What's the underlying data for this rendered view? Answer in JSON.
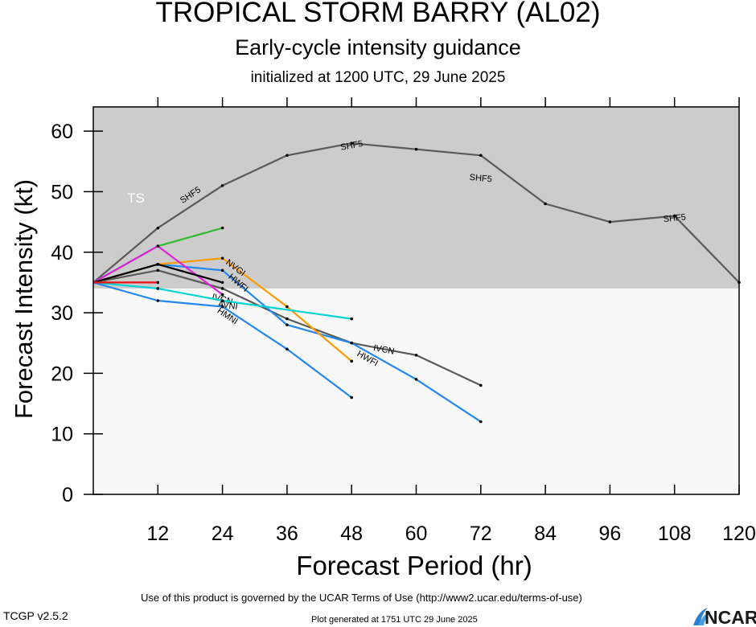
{
  "header": {
    "title": "TROPICAL STORM BARRY (AL02)",
    "subtitle": "Early-cycle intensity guidance",
    "initialized": "initialized at 1200 UTC, 29 June 2025"
  },
  "footer": {
    "terms": "Use of this product is governed by the UCAR Terms of Use (http://www2.ucar.edu/terms-of-use)",
    "version": "TCGP v2.5.2",
    "generated": "Plot generated at 1751 UTC   29 June 2025",
    "logo": "NCAR"
  },
  "chart_data": {
    "type": "line",
    "title": "TROPICAL STORM BARRY (AL02)",
    "xlabel": "Forecast Period (hr)",
    "ylabel": "Forecast Intensity (kt)",
    "xlim": [
      0,
      120
    ],
    "ylim": [
      0,
      64
    ],
    "xticks": [
      12,
      24,
      36,
      48,
      60,
      72,
      84,
      96,
      108,
      120
    ],
    "yticks": [
      0,
      10,
      20,
      30,
      40,
      50,
      60
    ],
    "bands": [
      {
        "label": "TS",
        "from": 34,
        "to": 64,
        "color": "#cccccc"
      },
      {
        "label": "",
        "from": 0,
        "to": 34,
        "color": "#f8f8f8"
      }
    ],
    "series": [
      {
        "name": "SHF5",
        "color": "#5a5a5a",
        "labels_at": [
          [
            18,
            49.5
          ],
          [
            48,
            57.7
          ],
          [
            72,
            52.3
          ],
          [
            108,
            45.7
          ]
        ],
        "x": [
          0,
          12,
          24,
          36,
          48,
          60,
          72,
          84,
          96,
          108,
          120
        ],
        "y": [
          35,
          44,
          51,
          56,
          58,
          57,
          56,
          48,
          45,
          46,
          35
        ]
      },
      {
        "name": "IVCN",
        "color": "#5a5a5a",
        "labels_at": [
          [
            24,
            32.3
          ],
          [
            54,
            24
          ]
        ],
        "x": [
          0,
          12,
          24,
          36,
          48,
          60,
          72
        ],
        "y": [
          35,
          37,
          34,
          29,
          25,
          23,
          18
        ]
      },
      {
        "name": "HWFI",
        "color": "#2288ee",
        "labels_at": [
          [
            27,
            35
          ],
          [
            51,
            22.5
          ]
        ],
        "x": [
          0,
          12,
          24,
          36,
          48,
          60,
          72
        ],
        "y": [
          35,
          38,
          37,
          28,
          25,
          19,
          12
        ]
      },
      {
        "name": "NVGI",
        "color": "#ff9900",
        "labels_at": [
          [
            26.5,
            37.5
          ]
        ],
        "x": [
          0,
          12,
          24,
          36,
          48
        ],
        "y": [
          35,
          38,
          39,
          31,
          22
        ]
      },
      {
        "name": "AVNI",
        "color": "#00d4d4",
        "labels_at": [
          [
            25,
            31.3
          ]
        ],
        "x": [
          0,
          12,
          24,
          48
        ],
        "y": [
          35,
          34,
          32,
          29
        ]
      },
      {
        "name": "HMNI",
        "color": "#2288ee",
        "labels_at": [
          [
            25,
            29.5
          ]
        ],
        "x": [
          0,
          12,
          24,
          36,
          48
        ],
        "y": [
          35,
          32,
          31,
          24,
          16
        ]
      },
      {
        "name": "",
        "color": "#33bb33",
        "x": [
          0,
          12,
          24
        ],
        "y": [
          35,
          41,
          44
        ]
      },
      {
        "name": "",
        "color": "#dd22dd",
        "x": [
          0,
          12,
          24
        ],
        "y": [
          35,
          41,
          33
        ]
      },
      {
        "name": "",
        "color": "#000000",
        "x": [
          0,
          12,
          24
        ],
        "y": [
          35,
          38,
          35
        ]
      },
      {
        "name": "",
        "color": "#ee1111",
        "x": [
          0,
          12
        ],
        "y": [
          35,
          35
        ]
      }
    ]
  }
}
